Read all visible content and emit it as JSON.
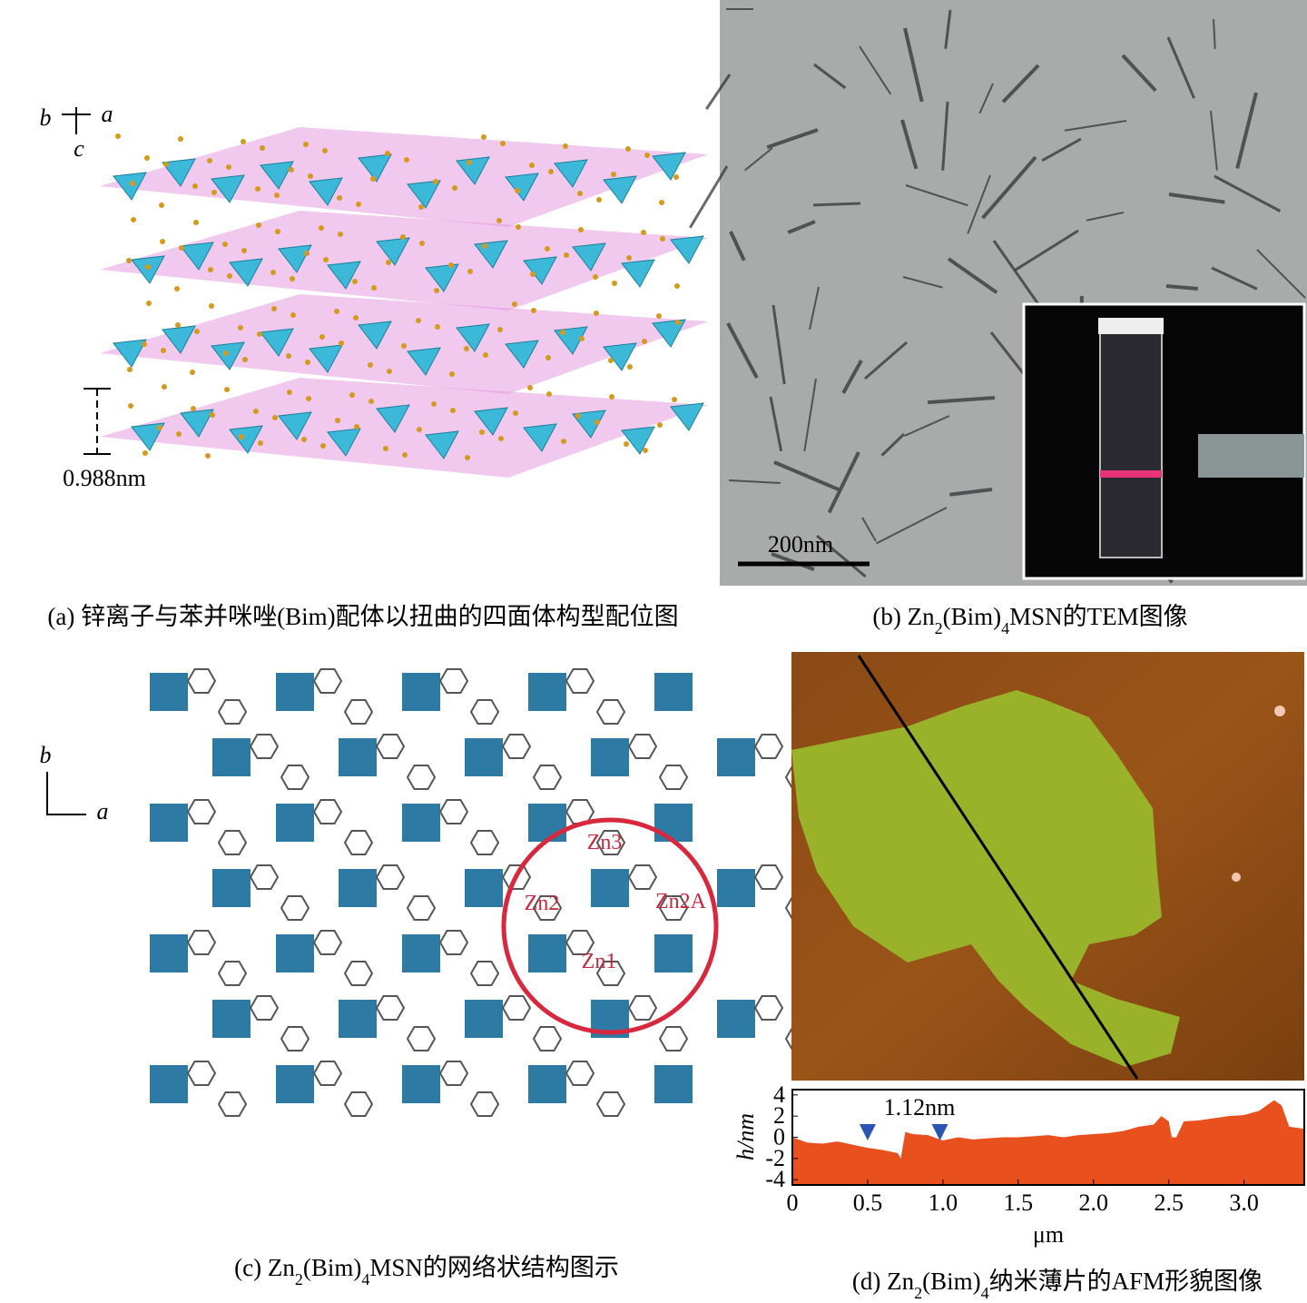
{
  "panels": {
    "a": {
      "axes": [
        "b",
        "a",
        "c"
      ],
      "spacing": "0.988nm",
      "caption": [
        "(a) 锌离子与苯并咪唑(Bim)配体以扭曲的四面体构型配位图"
      ]
    },
    "b": {
      "scale_bar": "200nm",
      "caption": [
        "(b) Zn",
        "2",
        "(Bim)",
        "4",
        "MSN的TEM图像"
      ]
    },
    "c": {
      "axes": [
        "b",
        "a"
      ],
      "sites": [
        "Zn3",
        "Zn2",
        "Zn2A",
        "Zn1"
      ],
      "caption": [
        "(c) Zn",
        "2",
        "(Bim)",
        "4",
        "MSN的网络状结构图示"
      ]
    },
    "d": {
      "annotation": "1.12nm",
      "caption": [
        "(d) Zn",
        "2",
        "(Bim)",
        "4",
        "纳米薄片的AFM形貌图像"
      ]
    }
  },
  "chart_data": {
    "type": "area",
    "xlabel": "μm",
    "ylabel": "h/nm",
    "x": [
      0,
      0.1,
      0.2,
      0.3,
      0.4,
      0.5,
      0.6,
      0.7,
      0.72,
      0.75,
      0.8,
      0.9,
      1.0,
      1.1,
      1.2,
      1.3,
      1.4,
      1.5,
      1.6,
      1.7,
      1.8,
      1.9,
      2.0,
      2.1,
      2.2,
      2.3,
      2.4,
      2.45,
      2.5,
      2.52,
      2.55,
      2.6,
      2.7,
      2.8,
      2.9,
      3.0,
      3.1,
      3.2,
      3.25,
      3.3,
      3.4
    ],
    "values": [
      0,
      -0.5,
      -0.6,
      -0.4,
      -0.7,
      -1,
      -1.2,
      -1.5,
      -2,
      0.5,
      0.3,
      0.2,
      -0.3,
      0,
      -0.2,
      -0.1,
      0,
      0,
      0.1,
      0.2,
      0,
      0.2,
      0.3,
      0.4,
      0.6,
      1,
      1.2,
      2,
      1.5,
      0,
      0,
      1.5,
      1.6,
      1.8,
      2,
      2.1,
      2.5,
      3.5,
      3,
      1,
      0.8
    ],
    "markers": [
      0.5,
      0.98
    ],
    "color": "#e8501e",
    "marker_color": "#2a55b4",
    "xlim": [
      0,
      3.4
    ],
    "ylim": [
      -4.5,
      4.5
    ],
    "xticks": [
      0,
      0.5,
      {
        "value": 1,
        "label": "1.0"
      },
      1.5,
      {
        "value": 2,
        "label": "2.0"
      },
      2.5,
      {
        "value": 3,
        "label": "3.0"
      }
    ],
    "yticks": [
      4,
      2,
      0,
      -2,
      -4
    ]
  }
}
